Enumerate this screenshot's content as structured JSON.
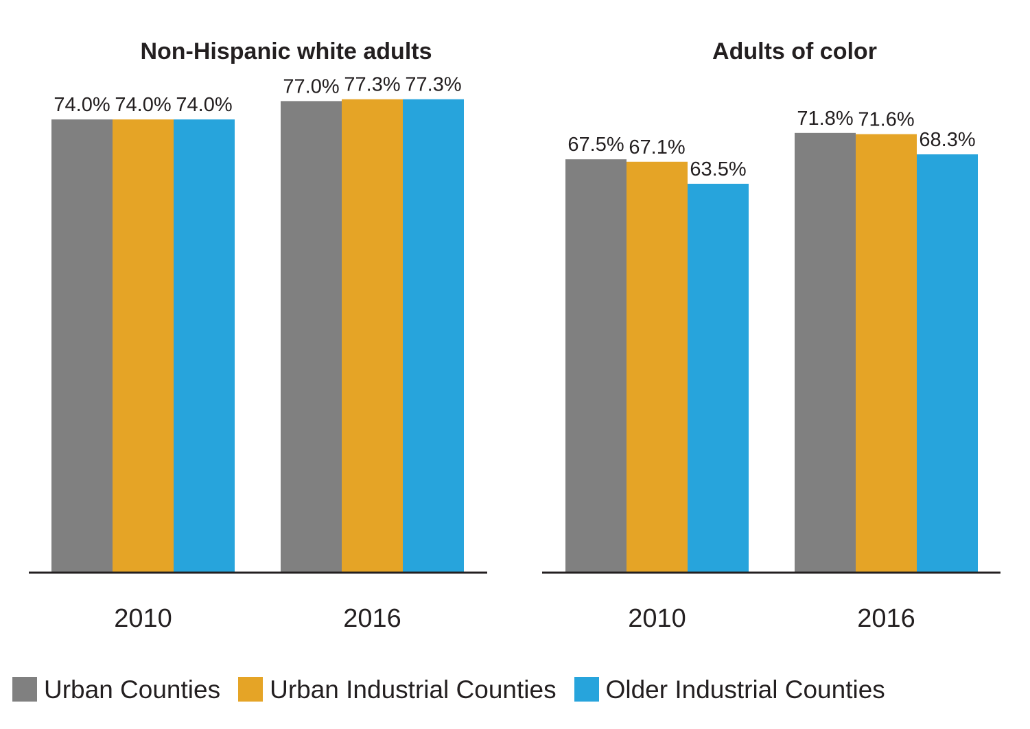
{
  "chart_data": [
    {
      "type": "bar",
      "title": "Non-Hispanic white adults",
      "categories": [
        "2010",
        "2016"
      ],
      "series": [
        {
          "name": "Urban Counties",
          "values": [
            74.0,
            77.0
          ],
          "labels": [
            "74.0%",
            "77.0%"
          ],
          "color": "#808080"
        },
        {
          "name": "Urban Industrial Counties",
          "values": [
            74.0,
            77.3
          ],
          "labels": [
            "74.0%",
            "77.3%"
          ],
          "color": "#e5a426"
        },
        {
          "name": "Older Industrial Counties",
          "values": [
            74.0,
            77.3
          ],
          "labels": [
            "74.0%",
            "77.3%"
          ],
          "color": "#27a4dc"
        }
      ],
      "ylim": [
        0,
        100
      ],
      "grid": false
    },
    {
      "type": "bar",
      "title": "Adults of color",
      "categories": [
        "2010",
        "2016"
      ],
      "series": [
        {
          "name": "Urban Counties",
          "values": [
            67.5,
            71.8
          ],
          "labels": [
            "67.5%",
            "71.8%"
          ],
          "color": "#808080"
        },
        {
          "name": "Urban Industrial Counties",
          "values": [
            67.1,
            71.6
          ],
          "labels": [
            "67.1%",
            "71.6%"
          ],
          "color": "#e5a426"
        },
        {
          "name": "Older Industrial Counties",
          "values": [
            63.5,
            68.3
          ],
          "labels": [
            "63.5%",
            "68.3%"
          ],
          "color": "#27a4dc"
        }
      ],
      "ylim": [
        0,
        100
      ],
      "grid": false
    }
  ],
  "legend": {
    "position": "bottom",
    "items": [
      {
        "label": "Urban Counties",
        "color": "#808080"
      },
      {
        "label": "Urban Industrial Counties",
        "color": "#e5a426"
      },
      {
        "label": "Older Industrial Counties",
        "color": "#27a4dc"
      }
    ]
  }
}
